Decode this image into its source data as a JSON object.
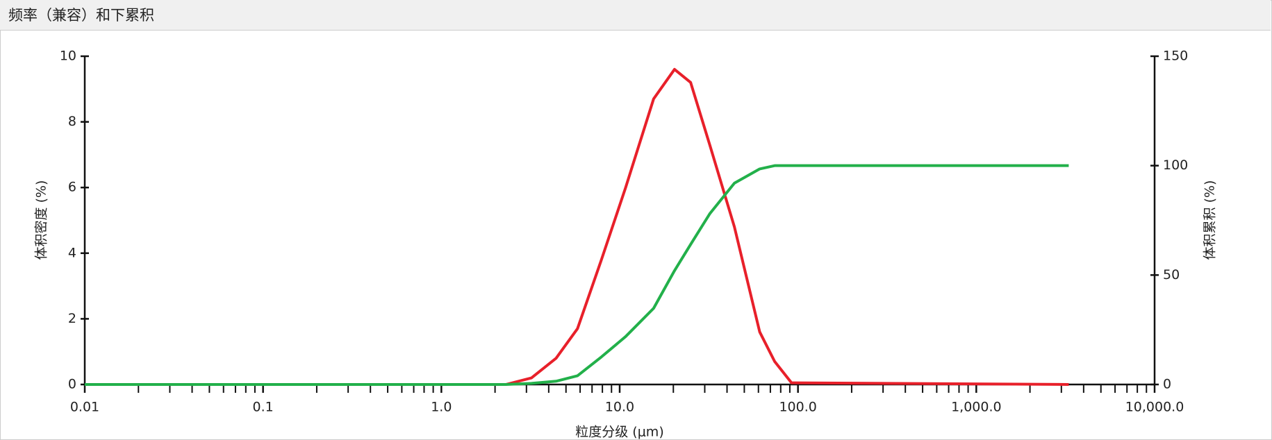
{
  "header": {
    "title": "频率（兼容）和下累积"
  },
  "chart_data": {
    "type": "line",
    "xlog": true,
    "x_label": "粒度分级 (μm)",
    "y_label": "体积密度 (%)",
    "y2_label": "体积累积 (%)",
    "x": [
      0.01,
      2.3,
      3.2,
      4.4,
      5.8,
      7.9,
      10.8,
      15.5,
      20.3,
      25,
      32,
      44,
      61,
      74,
      92,
      3300
    ],
    "series": [
      {
        "name": "体积密度",
        "color": "#e8202a",
        "values": [
          0,
          0,
          0.2,
          0.8,
          1.7,
          3.8,
          6.0,
          8.7,
          9.6,
          9.2,
          7.3,
          4.8,
          1.6,
          0.7,
          0.05,
          0
        ]
      },
      {
        "name": "体积累积",
        "color": "#22b04a",
        "axis": "y2",
        "values": [
          0,
          0,
          0.5,
          1.5,
          4,
          12.6,
          21.9,
          34.8,
          52,
          64,
          78,
          92,
          98.5,
          100,
          100,
          100
        ]
      }
    ],
    "xlim": [
      0.01,
      10000
    ],
    "xticks": [
      0.01,
      0.1,
      {
        "value": 1,
        "label": "1.0"
      },
      {
        "value": 10,
        "label": "10.0"
      },
      {
        "value": 100,
        "label": "100.0"
      },
      {
        "value": 1000,
        "label": "1,000.0"
      },
      {
        "value": 10000,
        "label": "10,000.0"
      }
    ],
    "ylim": [
      0,
      10
    ],
    "yticks": [
      0,
      2,
      4,
      6,
      8,
      10
    ],
    "y2lim": [
      0,
      150
    ],
    "y2ticks": [
      0,
      50,
      100,
      150
    ]
  }
}
